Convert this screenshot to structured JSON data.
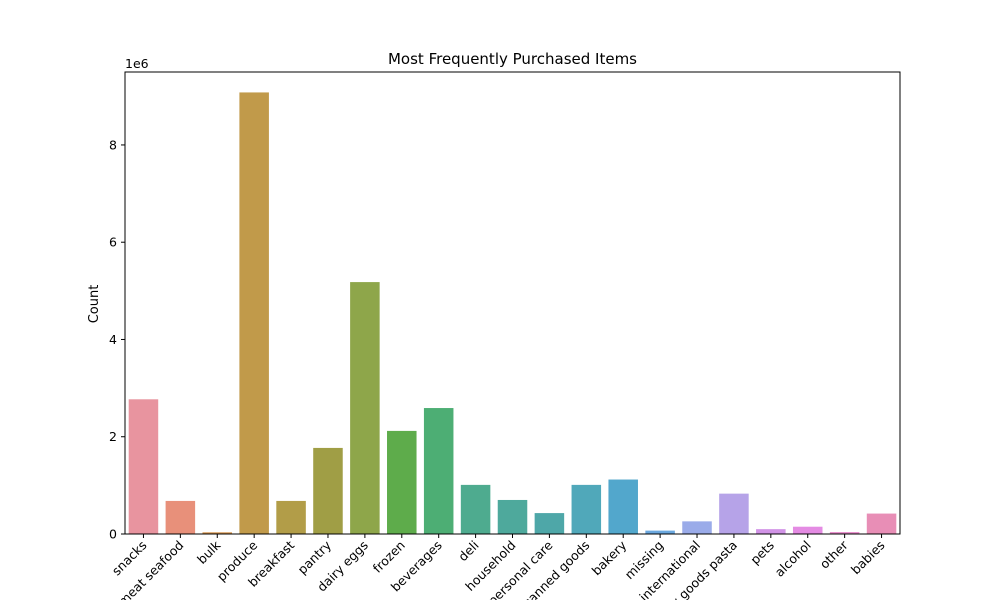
{
  "chart_data": {
    "type": "bar",
    "title": "Most Frequently Purchased Items",
    "xlabel": "",
    "ylabel": "Count",
    "y_offset_label": "1e6",
    "y_scale": 1000000,
    "ylim": [
      0,
      9500000
    ],
    "y_ticks": [
      0,
      2000000,
      4000000,
      6000000,
      8000000
    ],
    "y_tick_labels": [
      "0",
      "2",
      "4",
      "6",
      "8"
    ],
    "grid": false,
    "legend": "none",
    "categories": [
      "snacks",
      "meat seafood",
      "bulk",
      "produce",
      "breakfast",
      "pantry",
      "dairy eggs",
      "frozen",
      "beverages",
      "deli",
      "household",
      "personal care",
      "canned goods",
      "bakery",
      "missing",
      "international",
      "dry goods pasta",
      "pets",
      "alcohol",
      "other",
      "babies"
    ],
    "values": [
      2770000,
      680000,
      35000,
      9080000,
      680000,
      1770000,
      5180000,
      2120000,
      2590000,
      1010000,
      700000,
      430000,
      1010000,
      1120000,
      70000,
      260000,
      830000,
      100000,
      150000,
      40000,
      420000
    ],
    "colors": [
      "#e8949f",
      "#e8907a",
      "#d6954d",
      "#c19a4a",
      "#b29d48",
      "#a09e45",
      "#8ea64a",
      "#5eac4b",
      "#4dae74",
      "#4eab8f",
      "#4ea99c",
      "#4ea7a8",
      "#50a8ba",
      "#52a7cc",
      "#6aa7de",
      "#9aabe9",
      "#b6a3e8",
      "#d193e6",
      "#e48be3",
      "#e88ccc",
      "#e88eb6"
    ]
  }
}
